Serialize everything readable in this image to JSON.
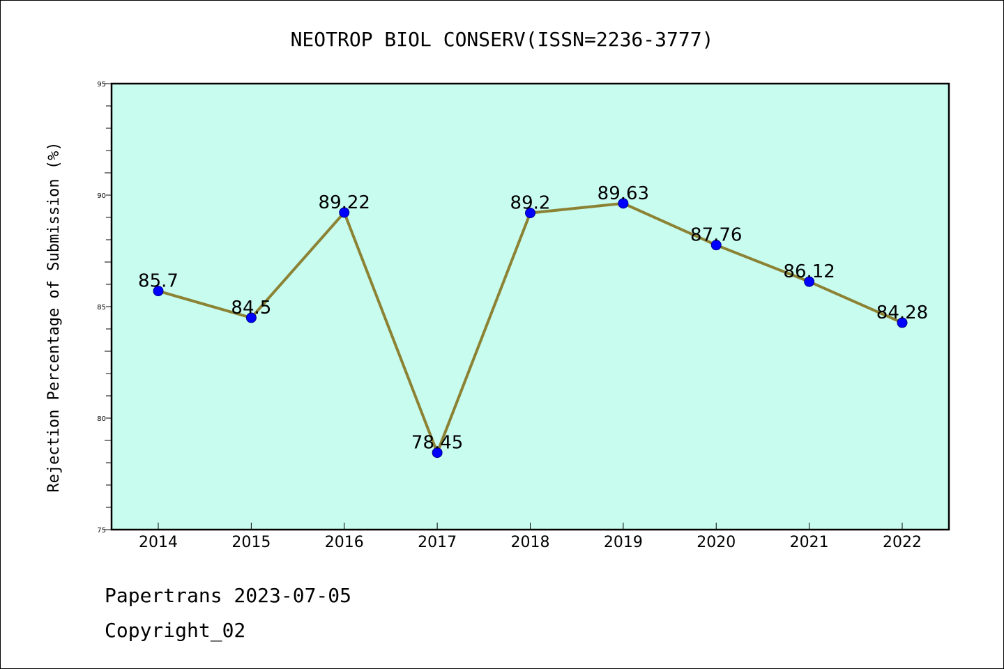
{
  "chart_data": {
    "type": "line",
    "title": "NEOTROP BIOL CONSERV(ISSN=2236-3777)",
    "ylabel": "Rejection Percentage of Submission (%)",
    "xlabel": "",
    "categories": [
      "2014",
      "2015",
      "2016",
      "2017",
      "2018",
      "2019",
      "2020",
      "2021",
      "2022"
    ],
    "values": [
      85.7,
      84.5,
      89.22,
      78.45,
      89.2,
      89.63,
      87.76,
      86.12,
      84.28
    ],
    "value_labels": [
      "85.7",
      "84.5",
      "89.22",
      "78.45",
      "89.2",
      "89.63",
      "87.76",
      "86.12",
      "84.28"
    ],
    "ylim": [
      75,
      95
    ],
    "yticks": [
      "75",
      "80",
      "85",
      "90",
      "95"
    ],
    "grid": false,
    "legend": "none",
    "colors": {
      "plot_background": "#c8fcee",
      "line": "#8c8234",
      "marker": "#0000ff"
    }
  },
  "footer": {
    "source_line": "Papertrans 2023-07-05",
    "copyright_line": "Copyright_02"
  }
}
